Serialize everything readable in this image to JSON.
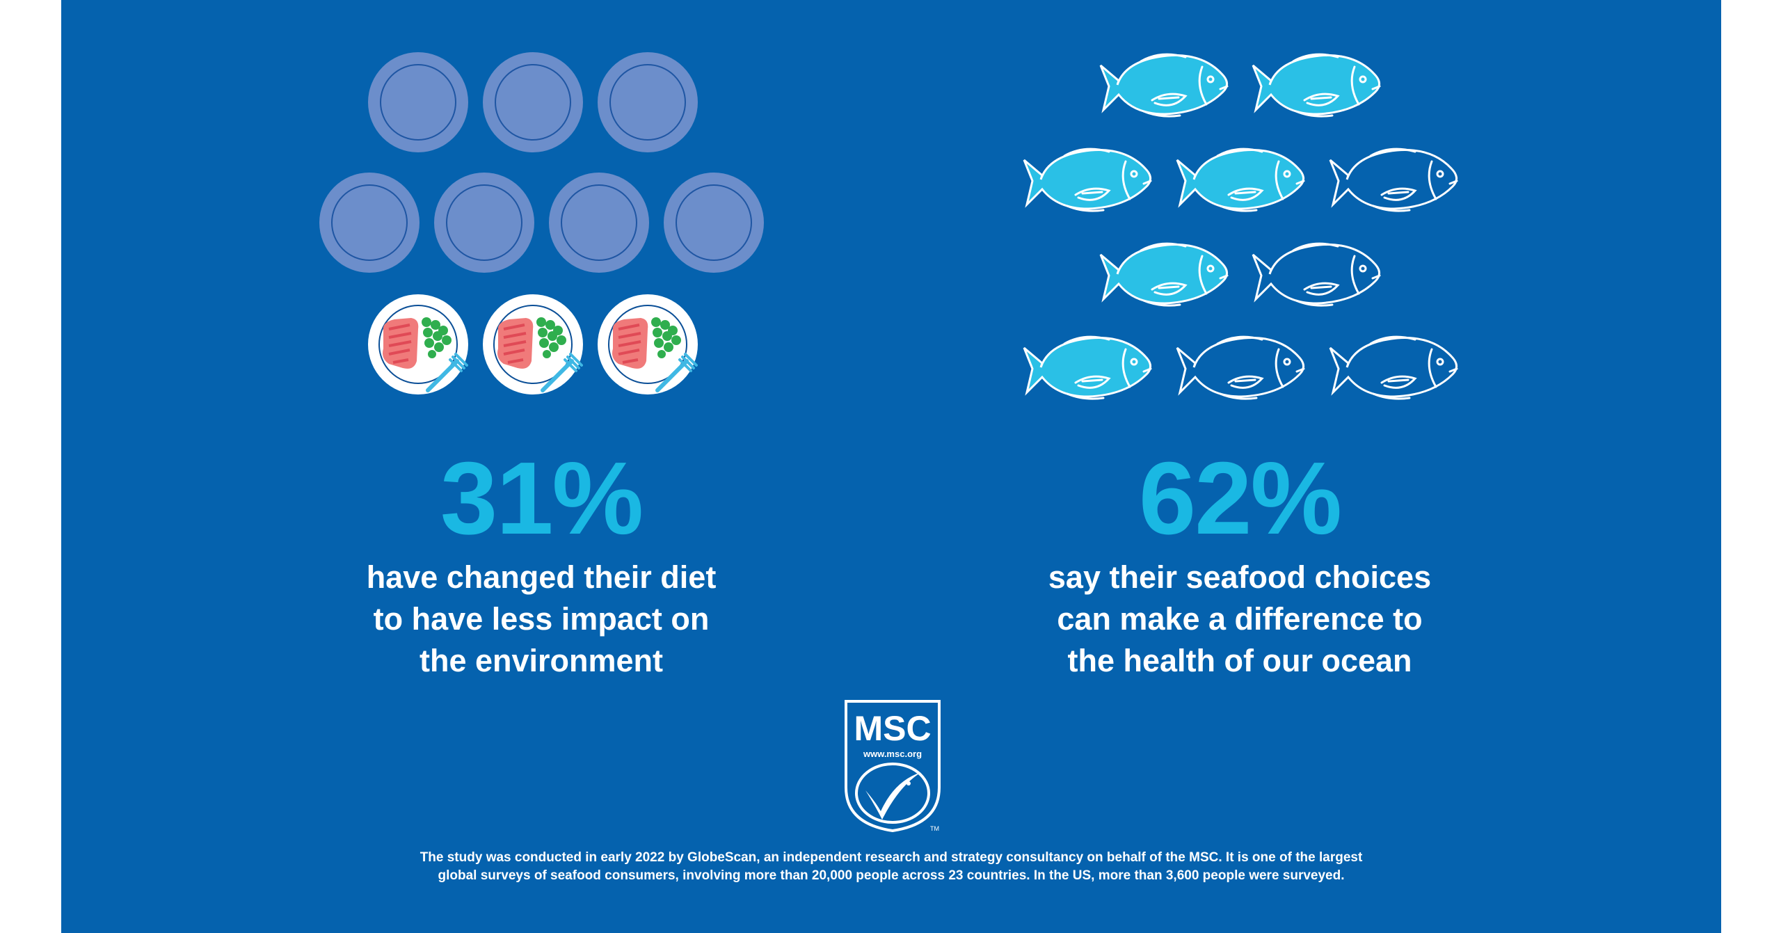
{
  "left_stat": {
    "percent": "31%",
    "caption_lines": [
      "have changed their diet",
      "to have less impact on",
      "the environment"
    ],
    "plates_total": 10,
    "plates_with_food": 3,
    "icon": "plate-icon"
  },
  "right_stat": {
    "percent": "62%",
    "caption_lines": [
      "say their seafood choices",
      "can make a difference to",
      "the health of our ocean"
    ],
    "fish_total": 10,
    "fish_filled": 6,
    "icon": "fish-icon"
  },
  "logo": {
    "name": "MSC",
    "url": "www.msc.org",
    "trademark": "TM"
  },
  "footnote_lines": [
    "The study was conducted in early 2022 by GlobeScan, an independent research and strategy consultancy on behalf of the MSC. It is one of the largest",
    "global surveys of seafood consumers, involving more than 20,000 people across 23 countries. In the US, more than 3,600 people were surveyed."
  ],
  "colors": {
    "background": "#0562ae",
    "accent": "#1ab8e3",
    "plate": "#6c8ecb",
    "fish": "#2ac0e6"
  }
}
